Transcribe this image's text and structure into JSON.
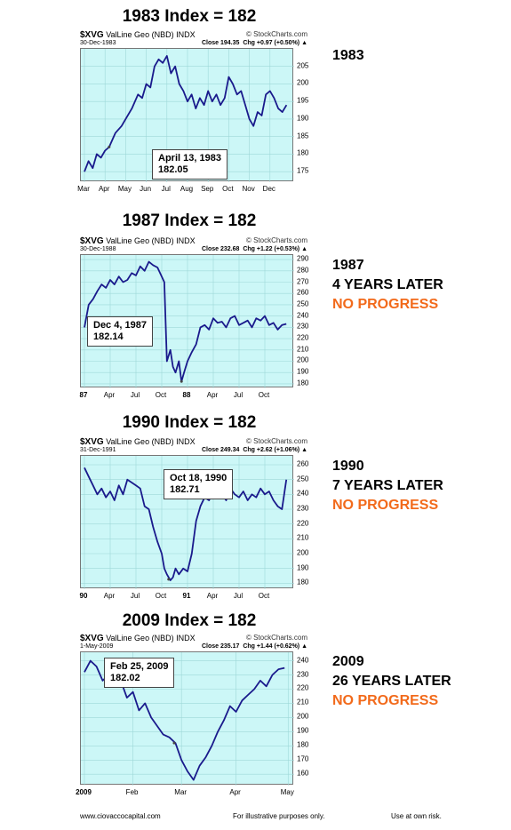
{
  "panels": [
    {
      "title": "1983 Index = 182",
      "symbol": "$XVG",
      "name": "ValLine Geo (NBD)",
      "kind": "INDX",
      "watermark": "© StockCharts.com",
      "date": "30-Dec-1983",
      "close": "Close 194.35",
      "chg": "Chg +0.97 (+0.50%) ▲",
      "callout_date": "April 13, 1983",
      "callout_value": "182.05",
      "side": [
        "1983"
      ],
      "side_orange": ""
    },
    {
      "title": "1987 Index = 182",
      "symbol": "$XVG",
      "name": "ValLine Geo (NBD)",
      "kind": "INDX",
      "watermark": "© StockCharts.com",
      "date": "30-Dec-1988",
      "close": "Close 232.68",
      "chg": "Chg +1.22 (+0.53%) ▲",
      "callout_date": "Dec 4, 1987",
      "callout_value": "182.14",
      "side": [
        "1987",
        "4 YEARS LATER"
      ],
      "side_orange": "NO PROGRESS"
    },
    {
      "title": "1990 Index = 182",
      "symbol": "$XVG",
      "name": "ValLine Geo (NBD)",
      "kind": "INDX",
      "watermark": "© StockCharts.com",
      "date": "31-Dec-1991",
      "close": "Close 249.34",
      "chg": "Chg +2.62 (+1.06%) ▲",
      "callout_date": "Oct 18, 1990",
      "callout_value": "182.71",
      "side": [
        "1990",
        "7 YEARS LATER"
      ],
      "side_orange": "NO PROGRESS"
    },
    {
      "title": "2009 Index = 182",
      "symbol": "$XVG",
      "name": "ValLine Geo (NBD)",
      "kind": "INDX",
      "watermark": "© StockCharts.com",
      "date": "1-May-2009",
      "close": "Close 235.17",
      "chg": "Chg +1.44 (+0.62%) ▲",
      "callout_date": "Feb 25, 2009",
      "callout_value": "182.02",
      "side": [
        "2009",
        "26 YEARS LATER"
      ],
      "side_orange": "NO PROGRESS"
    }
  ],
  "footer": {
    "site": "www.ciovaccocapital.com",
    "note": "For illustrative purposes only.",
    "risk": "Use at own risk."
  },
  "colors": {
    "plot_bg": "#ccf7f7",
    "line": "#1a1a8c",
    "orange": "#f26a1b"
  },
  "chart_data": [
    {
      "type": "line",
      "title": "1983 Index = 182",
      "ylim": [
        172,
        210
      ],
      "yticks": [
        175,
        180,
        185,
        190,
        195,
        200,
        205
      ],
      "xlim": [
        0,
        10
      ],
      "xticks": [
        {
          "x": 0,
          "label": "Mar"
        },
        {
          "x": 1,
          "label": "Apr"
        },
        {
          "x": 2,
          "label": "May"
        },
        {
          "x": 3,
          "label": "Jun"
        },
        {
          "x": 4,
          "label": "Jul"
        },
        {
          "x": 5,
          "label": "Aug"
        },
        {
          "x": 6,
          "label": "Sep"
        },
        {
          "x": 7,
          "label": "Oct"
        },
        {
          "x": 8,
          "label": "Nov"
        },
        {
          "x": 9,
          "label": "Dec"
        }
      ],
      "series": [
        {
          "x": [
            0,
            0.2,
            0.4,
            0.6,
            0.8,
            1.0,
            1.2,
            1.5,
            1.8,
            2.0,
            2.3,
            2.6,
            2.8,
            3.0,
            3.2,
            3.4,
            3.6,
            3.8,
            4.0,
            4.2,
            4.4,
            4.6,
            4.8,
            5.0,
            5.2,
            5.4,
            5.6,
            5.8,
            6.0,
            6.2,
            6.4,
            6.6,
            6.8,
            7.0,
            7.2,
            7.4,
            7.6,
            7.8,
            8.0,
            8.2,
            8.4,
            8.6,
            8.8,
            9.0,
            9.2,
            9.4,
            9.6,
            9.8
          ],
          "y": [
            175,
            178,
            176,
            180,
            179,
            181,
            182,
            186,
            188,
            190,
            193,
            197,
            196,
            200,
            199,
            205,
            207,
            206,
            208,
            203,
            205,
            200,
            198,
            195,
            197,
            193,
            196,
            194,
            198,
            195,
            197,
            194,
            196,
            202,
            200,
            197,
            198,
            194,
            190,
            188,
            192,
            191,
            197,
            198,
            196,
            193,
            192,
            194
          ]
        }
      ],
      "callout": {
        "x": 1.2,
        "y": 182.05
      }
    },
    {
      "type": "line",
      "title": "1987 Index = 182",
      "ylim": [
        176,
        294
      ],
      "yticks": [
        180,
        190,
        200,
        210,
        220,
        230,
        240,
        250,
        260,
        270,
        280,
        290
      ],
      "xlim": [
        0,
        24
      ],
      "xticks": [
        {
          "x": 0,
          "label": "87",
          "bold": true
        },
        {
          "x": 3,
          "label": "Apr"
        },
        {
          "x": 6,
          "label": "Jul"
        },
        {
          "x": 9,
          "label": "Oct"
        },
        {
          "x": 12,
          "label": "88",
          "bold": true
        },
        {
          "x": 15,
          "label": "Apr"
        },
        {
          "x": 18,
          "label": "Jul"
        },
        {
          "x": 21,
          "label": "Oct"
        }
      ],
      "series": [
        {
          "x": [
            0,
            0.5,
            1,
            1.5,
            2,
            2.5,
            3,
            3.5,
            4,
            4.5,
            5,
            5.5,
            6,
            6.5,
            7,
            7.5,
            8,
            8.5,
            9,
            9.3,
            9.6,
            10,
            10.3,
            10.6,
            11,
            11.3,
            11.6,
            12,
            12.5,
            13,
            13.5,
            14,
            14.5,
            15,
            15.5,
            16,
            16.5,
            17,
            17.5,
            18,
            18.5,
            19,
            19.5,
            20,
            20.5,
            21,
            21.5,
            22,
            22.5,
            23,
            23.5
          ],
          "y": [
            230,
            250,
            255,
            262,
            268,
            265,
            272,
            268,
            275,
            270,
            272,
            278,
            276,
            284,
            280,
            288,
            285,
            283,
            275,
            270,
            200,
            210,
            195,
            190,
            200,
            182,
            190,
            200,
            208,
            215,
            230,
            232,
            228,
            238,
            234,
            235,
            230,
            238,
            240,
            232,
            234,
            236,
            230,
            238,
            236,
            240,
            232,
            234,
            228,
            232,
            233
          ]
        }
      ],
      "callout": {
        "x": 11.3,
        "y": 182.14
      }
    },
    {
      "type": "line",
      "title": "1990 Index = 182",
      "ylim": [
        176,
        266
      ],
      "yticks": [
        180,
        190,
        200,
        210,
        220,
        230,
        240,
        250,
        260
      ],
      "xlim": [
        0,
        24
      ],
      "xticks": [
        {
          "x": 0,
          "label": "90",
          "bold": true
        },
        {
          "x": 3,
          "label": "Apr"
        },
        {
          "x": 6,
          "label": "Jul"
        },
        {
          "x": 9,
          "label": "Oct"
        },
        {
          "x": 12,
          "label": "91",
          "bold": true
        },
        {
          "x": 15,
          "label": "Apr"
        },
        {
          "x": 18,
          "label": "Jul"
        },
        {
          "x": 21,
          "label": "Oct"
        }
      ],
      "series": [
        {
          "x": [
            0,
            0.5,
            1,
            1.5,
            2,
            2.5,
            3,
            3.5,
            4,
            4.5,
            5,
            5.5,
            6,
            6.5,
            7,
            7.5,
            8,
            8.5,
            9,
            9.3,
            9.6,
            10,
            10.3,
            10.6,
            11,
            11.5,
            12,
            12.5,
            13,
            13.5,
            14,
            14.5,
            15,
            15.5,
            16,
            16.5,
            17,
            17.5,
            18,
            18.5,
            19,
            19.5,
            20,
            20.5,
            21,
            21.5,
            22,
            22.5,
            23,
            23.5
          ],
          "y": [
            258,
            252,
            246,
            240,
            244,
            238,
            242,
            236,
            246,
            240,
            250,
            248,
            246,
            244,
            232,
            230,
            218,
            208,
            200,
            190,
            186,
            182,
            184,
            190,
            186,
            190,
            188,
            200,
            222,
            232,
            238,
            236,
            242,
            238,
            240,
            236,
            244,
            240,
            238,
            242,
            236,
            240,
            238,
            244,
            240,
            242,
            236,
            232,
            230,
            250
          ]
        }
      ],
      "callout": {
        "x": 9.8,
        "y": 182.71
      }
    },
    {
      "type": "line",
      "title": "2009 Index = 182",
      "ylim": [
        152,
        246
      ],
      "yticks": [
        160,
        170,
        180,
        190,
        200,
        210,
        220,
        230,
        240
      ],
      "xlim": [
        0,
        17
      ],
      "xticks": [
        {
          "x": 0,
          "label": "2009",
          "bold": true
        },
        {
          "x": 4,
          "label": "Feb"
        },
        {
          "x": 8,
          "label": "Mar"
        },
        {
          "x": 12.5,
          "label": "Apr"
        },
        {
          "x": 16.8,
          "label": "May"
        }
      ],
      "series": [
        {
          "x": [
            0,
            0.5,
            1,
            1.5,
            2,
            2.5,
            3,
            3.5,
            4,
            4.5,
            5,
            5.5,
            6,
            6.5,
            7,
            7.5,
            8,
            8.5,
            9,
            9.5,
            10,
            10.5,
            11,
            11.5,
            12,
            12.5,
            13,
            13.5,
            14,
            14.5,
            15,
            15.5,
            16,
            16.5
          ],
          "y": [
            232,
            240,
            236,
            226,
            230,
            222,
            226,
            214,
            218,
            205,
            210,
            200,
            194,
            188,
            186,
            182,
            170,
            162,
            156,
            166,
            172,
            180,
            190,
            198,
            208,
            204,
            212,
            216,
            220,
            226,
            222,
            230,
            234,
            235
          ]
        }
      ],
      "callout": {
        "x": 7.4,
        "y": 182.02
      }
    }
  ]
}
